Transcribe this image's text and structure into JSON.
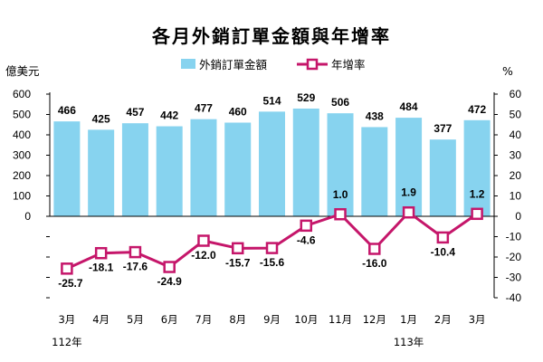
{
  "chart_data": {
    "type": "bar",
    "title": "各月外銷訂單金額與年增率",
    "left_axis": {
      "unit": "億美元",
      "ticks": [
        "600",
        "500",
        "400",
        "300",
        "200",
        "100",
        "0"
      ],
      "ylim": [
        0,
        600
      ]
    },
    "right_axis": {
      "unit": "%",
      "ticks": [
        "60",
        "50",
        "40",
        "30",
        "20",
        "10",
        "0",
        "-10",
        "-20",
        "-30",
        "-40"
      ],
      "ylim": [
        -40,
        60
      ]
    },
    "categories": [
      "3月",
      "4月",
      "5月",
      "6月",
      "7月",
      "8月",
      "9月",
      "10月",
      "11月",
      "12月",
      "1月",
      "2月",
      "3月"
    ],
    "year_labels": [
      {
        "label": "112年",
        "category_index": 0
      },
      {
        "label": "113年",
        "category_index": 10
      }
    ],
    "series": [
      {
        "name": "外銷訂單金額",
        "type": "bar",
        "axis": "left",
        "values": [
          466,
          425,
          457,
          442,
          477,
          460,
          514,
          529,
          506,
          438,
          484,
          377,
          472
        ],
        "labels": [
          "466",
          "425",
          "457",
          "442",
          "477",
          "460",
          "514",
          "529",
          "506",
          "438",
          "484",
          "377",
          "472"
        ]
      },
      {
        "name": "年增率",
        "type": "line",
        "axis": "right",
        "values": [
          -25.7,
          -18.1,
          -17.6,
          -24.9,
          -12.0,
          -15.7,
          -15.6,
          -4.6,
          1.0,
          -16.0,
          1.9,
          -10.4,
          1.2
        ],
        "labels": [
          "-25.7",
          "-18.1",
          "-17.6",
          "-24.9",
          "-12.0",
          "-15.7",
          "-15.6",
          "-4.6",
          "1.0",
          "-16.0",
          "1.9",
          "-10.4",
          "1.2"
        ]
      }
    ],
    "colors": {
      "bar": "#87d3ef",
      "line": "#c5166a",
      "marker_fill": "#ffffff"
    },
    "legend_position": "top-center",
    "grid": false
  }
}
